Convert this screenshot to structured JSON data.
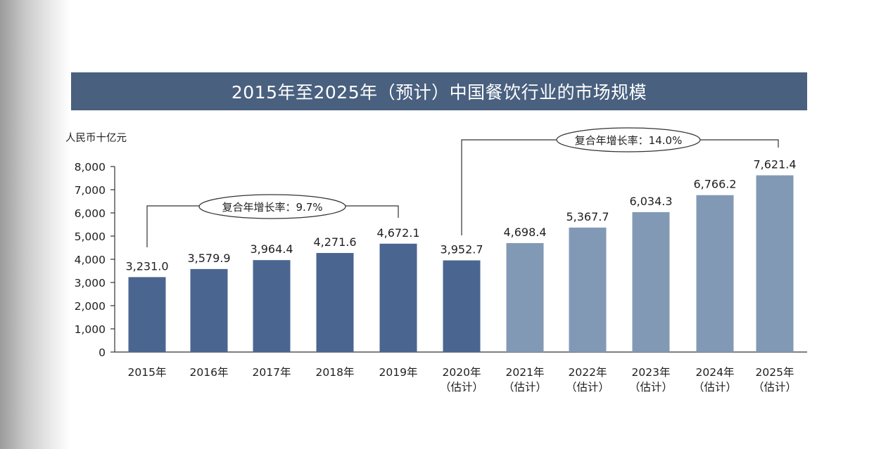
{
  "title": "2015年至2025年（预计）中国餐饮行业的市场规模",
  "chart_data": {
    "type": "bar",
    "title": "2015年至2025年（预计）中国餐饮行业的市场规模",
    "ylabel": "人民币十亿元",
    "ylim": [
      0,
      8000
    ],
    "yticks": [
      "0",
      "1,000",
      "2,000",
      "3,000",
      "4,000",
      "5,000",
      "6,000",
      "7,000",
      "8,000"
    ],
    "categories": [
      {
        "year": "2015年",
        "note": ""
      },
      {
        "year": "2016年",
        "note": ""
      },
      {
        "year": "2017年",
        "note": ""
      },
      {
        "year": "2018年",
        "note": ""
      },
      {
        "year": "2019年",
        "note": ""
      },
      {
        "year": "2020年",
        "note": "（估计）"
      },
      {
        "year": "2021年",
        "note": "（估计）"
      },
      {
        "year": "2022年",
        "note": "（估计）"
      },
      {
        "year": "2023年",
        "note": "（估计）"
      },
      {
        "year": "2024年",
        "note": "（估计）"
      },
      {
        "year": "2025年",
        "note": "（估计）"
      }
    ],
    "values": [
      3231.0,
      3579.9,
      3964.4,
      4271.6,
      4672.1,
      3952.7,
      4698.4,
      5367.7,
      6034.3,
      6766.2,
      7621.4
    ],
    "value_labels": [
      "3,231.0",
      "3,579.9",
      "3,964.4",
      "4,271.6",
      "4,672.1",
      "3,952.7",
      "4,698.4",
      "5,367.7",
      "6,034.3",
      "6,766.2",
      "7,621.4"
    ],
    "colors": {
      "historical": "#4a6690",
      "estimated": "#8299b6",
      "title_band": "#49607f"
    },
    "cagr_annotations": [
      {
        "label": "复合年增长率：9.7%",
        "from": "2015年",
        "to": "2019年"
      },
      {
        "label": "复合年增长率：14.0%",
        "from": "2020年",
        "to": "2025年"
      }
    ]
  }
}
